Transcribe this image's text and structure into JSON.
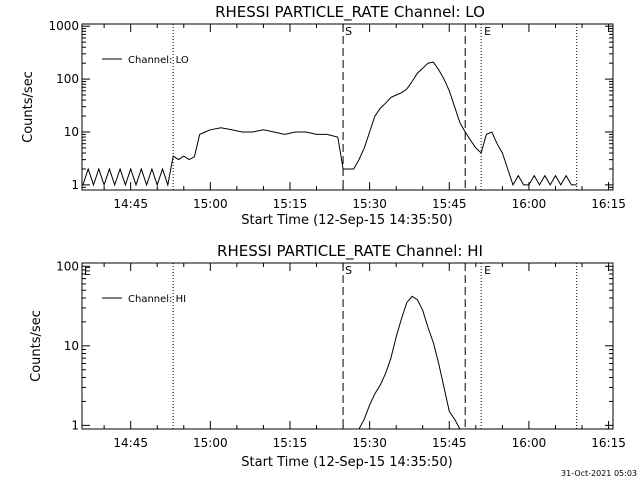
{
  "timestamp": "31-Oct-2021 05:03",
  "chart_data": [
    {
      "type": "line",
      "title": "RHESSI PARTICLE_RATE Channel: LO",
      "xlabel": "Start Time (12-Sep-15 14:35:50)",
      "ylabel": "Counts/sec",
      "y_scale": "log",
      "xlim": [
        "14:35:50",
        "16:15:50"
      ],
      "ylim": [
        0.8,
        1100
      ],
      "x_ticks": [
        "14:45",
        "15:00",
        "15:15",
        "15:30",
        "15:45",
        "16:00",
        "16:15"
      ],
      "y_ticks": [
        "1",
        "10",
        "100",
        "1000"
      ],
      "legend": {
        "label": "Channel: LO",
        "position": "top-left"
      },
      "vlines_dotted": [
        "14:53",
        "15:51",
        "16:09"
      ],
      "vlines_dashed": [
        {
          "time": "15:25",
          "label": "S"
        },
        {
          "time": "15:48",
          "label": "E"
        }
      ],
      "series": [
        {
          "name": "Channel: LO",
          "x": [
            "14:36",
            "14:37",
            "14:38",
            "14:39",
            "14:40",
            "14:41",
            "14:42",
            "14:43",
            "14:44",
            "14:45",
            "14:46",
            "14:47",
            "14:48",
            "14:49",
            "14:50",
            "14:51",
            "14:52",
            "14:53",
            "14:54",
            "14:55",
            "14:56",
            "14:57",
            "14:58",
            "14:59",
            "15:00",
            "15:02",
            "15:04",
            "15:06",
            "15:08",
            "15:10",
            "15:12",
            "15:14",
            "15:16",
            "15:18",
            "15:20",
            "15:22",
            "15:24",
            "15:25",
            "15:26",
            "15:27",
            "15:28",
            "15:29",
            "15:30",
            "15:31",
            "15:32",
            "15:33",
            "15:34",
            "15:35",
            "15:36",
            "15:37",
            "15:38",
            "15:39",
            "15:40",
            "15:41",
            "15:42",
            "15:43",
            "15:44",
            "15:45",
            "15:46",
            "15:47",
            "15:48",
            "15:49",
            "15:50",
            "15:51",
            "15:52",
            "15:53",
            "15:54",
            "15:55",
            "15:56",
            "15:57",
            "15:58",
            "15:59",
            "16:00",
            "16:01",
            "16:02",
            "16:03",
            "16:04",
            "16:05",
            "16:06",
            "16:07",
            "16:08",
            "16:09"
          ],
          "y": [
            1,
            2,
            1,
            2,
            1,
            2,
            1,
            2,
            1,
            2,
            1,
            2,
            1,
            2,
            1,
            2,
            1,
            3.5,
            3,
            3.5,
            3,
            3.4,
            9,
            10,
            11,
            12,
            11,
            10,
            10,
            11,
            10,
            9,
            10,
            10,
            9,
            9,
            8,
            2,
            2,
            2,
            3,
            5,
            10,
            20,
            28,
            35,
            45,
            50,
            55,
            65,
            90,
            130,
            160,
            200,
            210,
            150,
            100,
            60,
            30,
            15,
            10,
            7,
            5,
            4,
            9,
            10,
            6,
            4,
            2,
            1,
            1.5,
            1,
            1,
            1.5,
            1,
            1.5,
            1,
            1.5,
            1,
            1.5,
            1,
            1
          ]
        }
      ]
    },
    {
      "type": "line",
      "title": "RHESSI PARTICLE_RATE Channel: HI",
      "xlabel": "Start Time (12-Sep-15 14:35:50)",
      "ylabel": "Counts/sec",
      "y_scale": "log",
      "xlim": [
        "14:35:50",
        "16:15:50"
      ],
      "ylim": [
        0.9,
        110
      ],
      "x_ticks": [
        "14:45",
        "15:00",
        "15:15",
        "15:30",
        "15:45",
        "16:00",
        "16:15"
      ],
      "y_ticks": [
        "1",
        "10",
        "100"
      ],
      "legend": {
        "label": "Channel: HI",
        "position": "top-left"
      },
      "corner_label": "E",
      "vlines_dotted": [
        "14:53",
        "15:51",
        "16:09"
      ],
      "vlines_dashed": [
        {
          "time": "15:25",
          "label": "S"
        },
        {
          "time": "15:48",
          "label": "E"
        }
      ],
      "series": [
        {
          "name": "Channel: HI",
          "x": [
            "15:28",
            "15:29",
            "15:30",
            "15:31",
            "15:32",
            "15:33",
            "15:34",
            "15:35",
            "15:36",
            "15:37",
            "15:38",
            "15:39",
            "15:40",
            "15:41",
            "15:42",
            "15:43",
            "15:44",
            "15:45",
            "15:46",
            "15:47"
          ],
          "y": [
            0.9,
            1.2,
            1.8,
            2.5,
            3.2,
            4.5,
            7,
            13,
            22,
            35,
            42,
            38,
            28,
            17,
            11,
            6,
            3,
            1.5,
            1.2,
            0.9
          ]
        }
      ]
    }
  ]
}
